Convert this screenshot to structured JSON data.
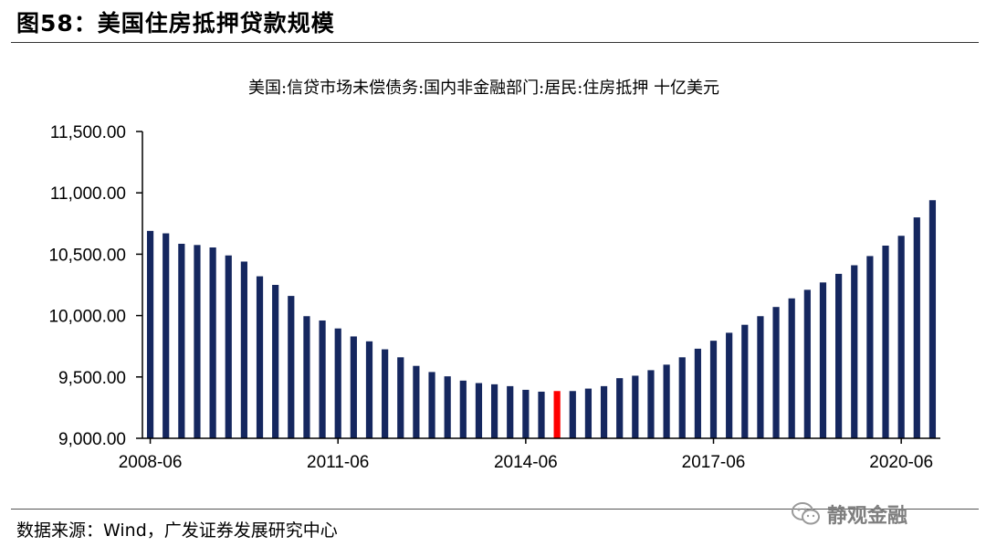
{
  "figure_title": "图58：美国住房抵押贷款规模",
  "source_text": "数据来源：Wind，广发证券发展研究中心",
  "watermark": {
    "text": "静观金融",
    "icon": "wechat-icon"
  },
  "colors": {
    "bar": "#15275f",
    "highlight": "#ff0000",
    "axis": "#000000",
    "watermark": "#7f7f7f"
  },
  "chart_data": {
    "type": "bar",
    "title": "美国:信贷市场未偿债务:国内非金融部门:居民:住房抵押 十亿美元",
    "xlabel": "",
    "ylabel": "",
    "ylim": [
      9000,
      11500
    ],
    "yticks": [
      "9,000.00",
      "9,500.00",
      "10,000.00",
      "10,500.00",
      "11,000.00",
      "11,500.00"
    ],
    "xticks": [
      "2008-06",
      "2011-06",
      "2014-06",
      "2017-06",
      "2020-06"
    ],
    "highlight_index": 26,
    "grid": false,
    "legend": "none",
    "categories": [
      "2008-06",
      "2008-09",
      "2008-12",
      "2009-03",
      "2009-06",
      "2009-09",
      "2009-12",
      "2010-03",
      "2010-06",
      "2010-09",
      "2010-12",
      "2011-03",
      "2011-06",
      "2011-09",
      "2011-12",
      "2012-03",
      "2012-06",
      "2012-09",
      "2012-12",
      "2013-03",
      "2013-06",
      "2013-09",
      "2013-12",
      "2014-03",
      "2014-06",
      "2014-09",
      "2014-12",
      "2015-03",
      "2015-06",
      "2015-09",
      "2015-12",
      "2016-03",
      "2016-06",
      "2016-09",
      "2016-12",
      "2017-03",
      "2017-06",
      "2017-09",
      "2017-12",
      "2018-03",
      "2018-06",
      "2018-09",
      "2018-12",
      "2019-03",
      "2019-06",
      "2019-09",
      "2019-12",
      "2020-03",
      "2020-06",
      "2020-09",
      "2020-12"
    ],
    "values": [
      10690,
      10670,
      10585,
      10575,
      10555,
      10490,
      10440,
      10320,
      10250,
      10160,
      9995,
      9960,
      9895,
      9830,
      9790,
      9725,
      9660,
      9590,
      9540,
      9505,
      9470,
      9450,
      9440,
      9425,
      9395,
      9380,
      9385,
      9385,
      9405,
      9425,
      9490,
      9510,
      9555,
      9600,
      9660,
      9730,
      9795,
      9860,
      9925,
      9995,
      10070,
      10140,
      10210,
      10270,
      10340,
      10410,
      10485,
      10570,
      10650,
      10800,
      10940
    ]
  }
}
